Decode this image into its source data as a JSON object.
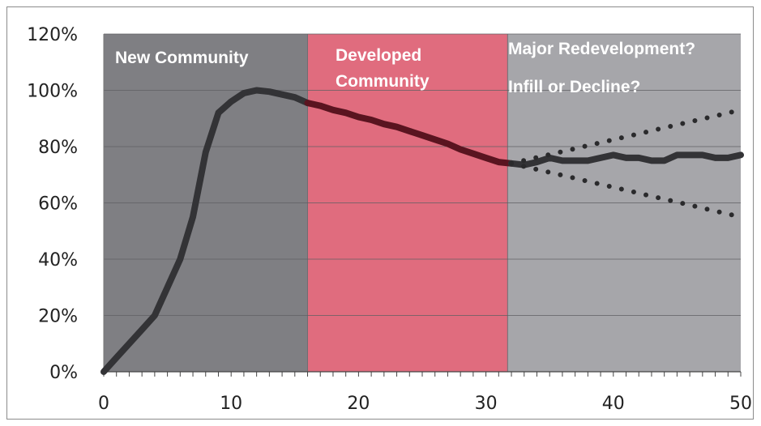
{
  "chart_data": {
    "type": "line",
    "title": "",
    "xlabel": "",
    "ylabel": "",
    "xlim": [
      0,
      50
    ],
    "ylim": [
      0,
      1.2
    ],
    "x_ticks": [
      0,
      10,
      20,
      30,
      40,
      50
    ],
    "y_ticks": [
      0,
      0.2,
      0.4,
      0.6,
      0.8,
      1.0,
      1.2
    ],
    "x_tick_labels": [
      "0",
      "10",
      "20",
      "30",
      "40",
      "50"
    ],
    "y_tick_labels": [
      "0%",
      "20%",
      "40%",
      "60%",
      "80%",
      "100%",
      "120%"
    ],
    "grid": "horizontal",
    "regions": [
      {
        "from": 0,
        "to": 16,
        "color": "#7f7f83",
        "labels": [
          "New Community"
        ]
      },
      {
        "from": 16,
        "to": 31.7,
        "color": "#e06c7e",
        "labels": [
          "Developed",
          "Community"
        ]
      },
      {
        "from": 31.7,
        "to": 50,
        "color": "#a6a6aa",
        "labels": [
          "Major Redevelopment?",
          "Infill or Decline?"
        ]
      }
    ],
    "series": [
      {
        "style": "solid",
        "color": "#333336",
        "x": [
          0,
          1,
          2,
          3,
          4,
          5,
          6,
          7,
          8,
          9,
          10,
          11,
          12,
          13,
          14,
          15,
          16
        ],
        "y": [
          0.0,
          0.05,
          0.1,
          0.15,
          0.2,
          0.3,
          0.4,
          0.55,
          0.78,
          0.92,
          0.96,
          0.99,
          1.0,
          0.995,
          0.985,
          0.975,
          0.955
        ]
      },
      {
        "style": "solid",
        "color": "#5a1420",
        "x": [
          16,
          17,
          18,
          19,
          20,
          21,
          22,
          23,
          24,
          25,
          26,
          27,
          28,
          29,
          30,
          31,
          32
        ],
        "y": [
          0.955,
          0.945,
          0.93,
          0.92,
          0.905,
          0.895,
          0.88,
          0.87,
          0.855,
          0.84,
          0.825,
          0.81,
          0.79,
          0.775,
          0.76,
          0.745,
          0.74
        ]
      },
      {
        "style": "solid",
        "color": "#333336",
        "x": [
          32,
          33,
          34,
          35,
          36,
          37,
          38,
          39,
          40,
          41,
          42,
          43,
          44,
          45,
          46,
          47,
          48,
          49,
          50
        ],
        "y": [
          0.74,
          0.735,
          0.745,
          0.76,
          0.75,
          0.75,
          0.75,
          0.76,
          0.77,
          0.76,
          0.76,
          0.75,
          0.75,
          0.77,
          0.77,
          0.77,
          0.76,
          0.76,
          0.77
        ]
      },
      {
        "style": "dotted",
        "color": "#2a2a2c",
        "x": [
          32,
          50
        ],
        "y": [
          0.74,
          0.93
        ]
      },
      {
        "style": "dotted",
        "color": "#2a2a2c",
        "x": [
          32,
          50
        ],
        "y": [
          0.74,
          0.55
        ]
      }
    ]
  }
}
